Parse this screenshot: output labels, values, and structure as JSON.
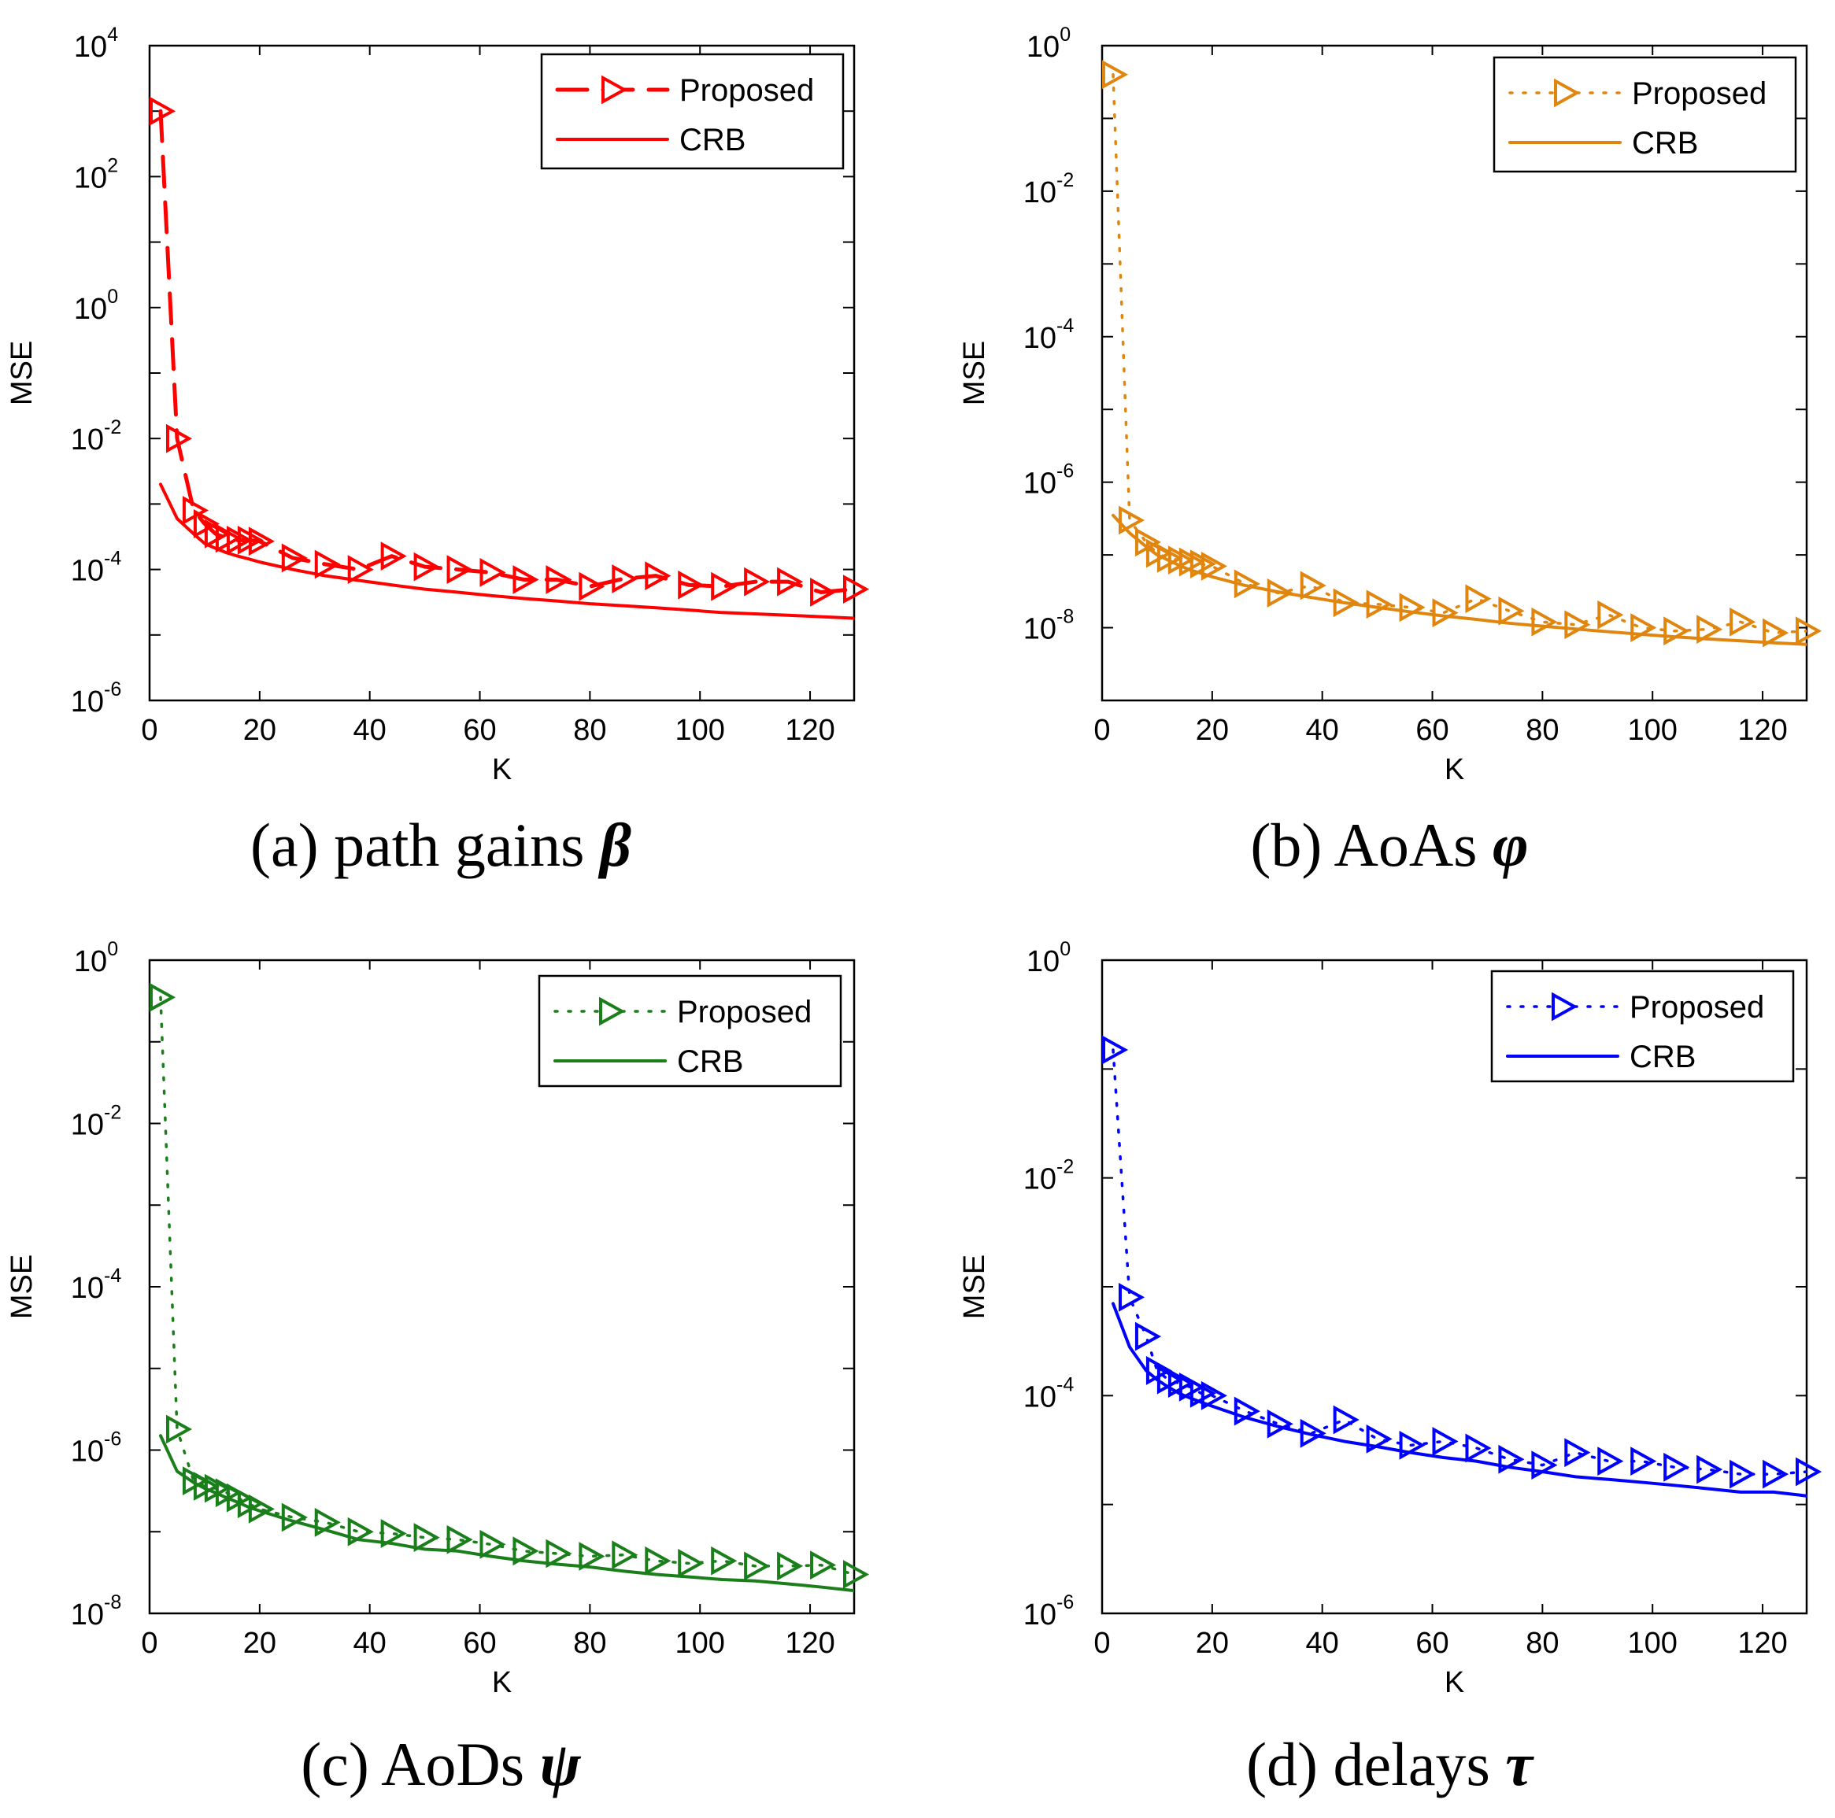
{
  "chart_data": [
    {
      "id": "a",
      "type": "line",
      "caption": "(a) path gains",
      "caption_symbol": "β",
      "xlabel": "K",
      "ylabel": "MSE",
      "xlim": [
        0,
        128
      ],
      "xticks": [
        0,
        20,
        40,
        60,
        80,
        100,
        120
      ],
      "ylim_exp": [
        -6,
        4
      ],
      "yticks_exp": [
        -6,
        -4,
        -2,
        0,
        2,
        4
      ],
      "color": "#ff0000",
      "series": [
        {
          "name": "Proposed",
          "style": "dashed",
          "marker": "triangle-right",
          "x": [
            2,
            5,
            8,
            10,
            12,
            14,
            16,
            18,
            20,
            26,
            32,
            38,
            44,
            50,
            56,
            62,
            68,
            74,
            80,
            86,
            92,
            98,
            104,
            110,
            116,
            122,
            128
          ],
          "y": [
            1000,
            0.01,
            0.0008,
            0.0005,
            0.00035,
            0.0003,
            0.00028,
            0.00028,
            0.00027,
            0.00015,
            0.00012,
            0.0001,
            0.00016,
            0.00011,
            0.0001,
            9e-05,
            7e-05,
            7e-05,
            5.5e-05,
            7.2e-05,
            8e-05,
            5.8e-05,
            5.5e-05,
            6.5e-05,
            6.5e-05,
            4.5e-05,
            5e-05
          ]
        },
        {
          "name": "CRB",
          "style": "solid",
          "marker": "none",
          "x": [
            2,
            5,
            8,
            10,
            12,
            14,
            16,
            18,
            20,
            26,
            32,
            38,
            44,
            50,
            56,
            62,
            68,
            74,
            80,
            86,
            92,
            98,
            104,
            110,
            116,
            122,
            128
          ],
          "y": [
            0.002,
            0.0006,
            0.00035,
            0.00025,
            0.00021,
            0.00018,
            0.00016,
            0.000145,
            0.00013,
            0.0001,
            8e-05,
            6.8e-05,
            5.8e-05,
            5e-05,
            4.5e-05,
            4e-05,
            3.6e-05,
            3.3e-05,
            3e-05,
            2.8e-05,
            2.6e-05,
            2.4e-05,
            2.2e-05,
            2.1e-05,
            2e-05,
            1.9e-05,
            1.8e-05
          ]
        }
      ]
    },
    {
      "id": "b",
      "type": "line",
      "caption": "(b) AoAs",
      "caption_symbol": "φ",
      "xlabel": "K",
      "ylabel": "MSE",
      "xlim": [
        0,
        128
      ],
      "xticks": [
        0,
        20,
        40,
        60,
        80,
        100,
        120
      ],
      "ylim_exp": [
        -9,
        0
      ],
      "yticks_exp": [
        -8,
        -6,
        -4,
        -2,
        0
      ],
      "color": "#e0860f",
      "series": [
        {
          "name": "Proposed",
          "style": "dotted",
          "marker": "triangle-right",
          "x": [
            2,
            5,
            8,
            10,
            12,
            14,
            16,
            18,
            20,
            26,
            32,
            38,
            44,
            50,
            56,
            62,
            68,
            74,
            80,
            86,
            92,
            98,
            104,
            110,
            116,
            122,
            128
          ],
          "y": [
            0.4,
            3e-07,
            1.5e-07,
            1.05e-07,
            9e-08,
            8.5e-08,
            8e-08,
            7.5e-08,
            7e-08,
            4e-08,
            3e-08,
            3.8e-08,
            2.2e-08,
            2.1e-08,
            1.9e-08,
            1.6e-08,
            2.5e-08,
            1.7e-08,
            1.2e-08,
            1.1e-08,
            1.5e-08,
            1e-08,
            9e-09,
            9.5e-09,
            1.2e-08,
            8.5e-09,
            9e-09
          ]
        },
        {
          "name": "CRB",
          "style": "solid",
          "marker": "none",
          "x": [
            2,
            5,
            8,
            10,
            12,
            14,
            16,
            18,
            20,
            26,
            32,
            38,
            44,
            50,
            56,
            62,
            68,
            74,
            80,
            86,
            92,
            98,
            104,
            110,
            116,
            122,
            128
          ],
          "y": [
            3.5e-07,
            2e-07,
            1.3e-07,
            1e-07,
            8.5e-08,
            7.2e-08,
            6.2e-08,
            5.6e-08,
            5e-08,
            3.8e-08,
            3.1e-08,
            2.6e-08,
            2.2e-08,
            1.9e-08,
            1.65e-08,
            1.45e-08,
            1.3e-08,
            1.15e-08,
            1.05e-08,
            9.6e-09,
            8.8e-09,
            8.1e-09,
            7.5e-09,
            7e-09,
            6.6e-09,
            6.2e-09,
            5.9e-09
          ]
        }
      ]
    },
    {
      "id": "c",
      "type": "line",
      "caption": "(c) AoDs",
      "caption_symbol": "ψ",
      "xlabel": "K",
      "ylabel": "MSE",
      "xlim": [
        0,
        128
      ],
      "xticks": [
        0,
        20,
        40,
        60,
        80,
        100,
        120
      ],
      "ylim_exp": [
        -8,
        0
      ],
      "yticks_exp": [
        -8,
        -6,
        -4,
        -2,
        0
      ],
      "color": "#1a7f1a",
      "series": [
        {
          "name": "Proposed",
          "style": "dotted",
          "marker": "triangle-right",
          "x": [
            2,
            5,
            8,
            10,
            12,
            14,
            16,
            18,
            20,
            26,
            32,
            38,
            44,
            50,
            56,
            62,
            68,
            74,
            80,
            86,
            92,
            98,
            104,
            110,
            116,
            122,
            128
          ],
          "y": [
            0.35,
            1.8e-06,
            4.2e-07,
            3.6e-07,
            3.4e-07,
            3e-07,
            2.6e-07,
            2.2e-07,
            1.9e-07,
            1.5e-07,
            1.3e-07,
            1e-07,
            9.5e-08,
            8.5e-08,
            8e-08,
            7e-08,
            5.8e-08,
            5.4e-08,
            5e-08,
            5.2e-08,
            4.4e-08,
            4.1e-08,
            4.4e-08,
            3.8e-08,
            3.8e-08,
            3.9e-08,
            3e-08
          ]
        },
        {
          "name": "CRB",
          "style": "solid",
          "marker": "none",
          "x": [
            2,
            5,
            8,
            10,
            12,
            14,
            16,
            18,
            20,
            26,
            32,
            38,
            44,
            50,
            56,
            62,
            68,
            74,
            80,
            86,
            92,
            98,
            104,
            110,
            116,
            122,
            128
          ],
          "y": [
            1.5e-06,
            5.5e-07,
            4e-07,
            3.4e-07,
            3e-07,
            2.6e-07,
            2.3e-07,
            2e-07,
            1.8e-07,
            1.35e-07,
            1.05e-07,
            8e-08,
            7.2e-08,
            6.1e-08,
            5.8e-08,
            5e-08,
            4.4e-08,
            4e-08,
            3.7e-08,
            3.3e-08,
            3e-08,
            2.8e-08,
            2.6e-08,
            2.5e-08,
            2.3e-08,
            2.1e-08,
            1.9e-08
          ]
        }
      ]
    },
    {
      "id": "d",
      "type": "line",
      "caption": "(d) delays",
      "caption_symbol": "τ",
      "xlabel": "K",
      "ylabel": "MSE",
      "xlim": [
        0,
        128
      ],
      "xticks": [
        0,
        20,
        40,
        60,
        80,
        100,
        120
      ],
      "ylim_exp": [
        -6,
        0
      ],
      "yticks_exp": [
        -6,
        -4,
        -2,
        0
      ],
      "color": "#0000ff",
      "series": [
        {
          "name": "Proposed",
          "style": "dotted",
          "marker": "triangle-right",
          "x": [
            2,
            5,
            8,
            10,
            12,
            14,
            16,
            18,
            20,
            26,
            32,
            38,
            44,
            50,
            56,
            62,
            68,
            74,
            80,
            86,
            92,
            98,
            104,
            110,
            116,
            122,
            128
          ],
          "y": [
            0.15,
            0.0008,
            0.00035,
            0.00017,
            0.00014,
            0.00013,
            0.00012,
            0.000105,
            0.0001,
            7.2e-05,
            5.5e-05,
            4.5e-05,
            6e-05,
            4e-05,
            3.5e-05,
            3.8e-05,
            3.3e-05,
            2.6e-05,
            2.3e-05,
            3e-05,
            2.5e-05,
            2.5e-05,
            2.2e-05,
            2.1e-05,
            1.9e-05,
            1.9e-05,
            2e-05
          ]
        },
        {
          "name": "CRB",
          "style": "solid",
          "marker": "none",
          "x": [
            2,
            5,
            8,
            10,
            12,
            14,
            16,
            18,
            20,
            26,
            32,
            38,
            44,
            50,
            56,
            62,
            68,
            74,
            80,
            86,
            92,
            98,
            104,
            110,
            116,
            122,
            128
          ],
          "y": [
            0.0007,
            0.00028,
            0.00017,
            0.00014,
            0.00012,
            0.000105,
            9.5e-05,
            8.7e-05,
            8e-05,
            6.3e-05,
            5.2e-05,
            4.4e-05,
            3.8e-05,
            3.4e-05,
            3e-05,
            2.7e-05,
            2.5e-05,
            2.2e-05,
            2e-05,
            1.8e-05,
            1.7e-05,
            1.6e-05,
            1.5e-05,
            1.4e-05,
            1.3e-05,
            1.3e-05,
            1.2e-05
          ]
        }
      ]
    }
  ]
}
